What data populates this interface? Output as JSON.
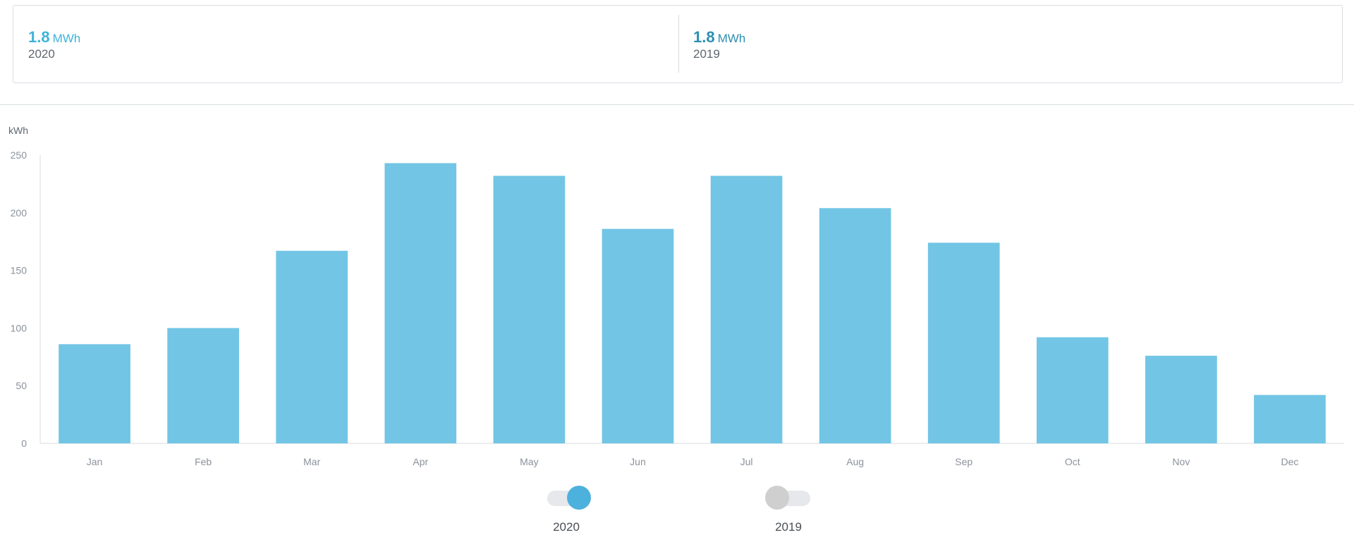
{
  "summary": {
    "items": [
      {
        "value": "1.8",
        "unit": "MWh",
        "year": "2020",
        "color": "#3fb3d9"
      },
      {
        "value": "1.8",
        "unit": "MWh",
        "year": "2019",
        "color": "#2a8fb3"
      }
    ]
  },
  "toggles": [
    {
      "label": "2020",
      "state": "on",
      "color": "#4db1dd"
    },
    {
      "label": "2019",
      "state": "off",
      "color": "#cfcfcf"
    }
  ],
  "chart_data": {
    "type": "bar",
    "unit_label": "kWh",
    "categories": [
      "Jan",
      "Feb",
      "Mar",
      "Apr",
      "May",
      "Jun",
      "Jul",
      "Aug",
      "Sep",
      "Oct",
      "Nov",
      "Dec"
    ],
    "series": [
      {
        "values": [
          86,
          100,
          167,
          243,
          232,
          186,
          232,
          204,
          174,
          92,
          76,
          42
        ],
        "color": "#72c5e4"
      }
    ],
    "yticks": [
      0,
      50,
      100,
      150,
      200,
      250
    ],
    "ylim": [
      0,
      250
    ],
    "grid": false,
    "legend": "bottom"
  }
}
